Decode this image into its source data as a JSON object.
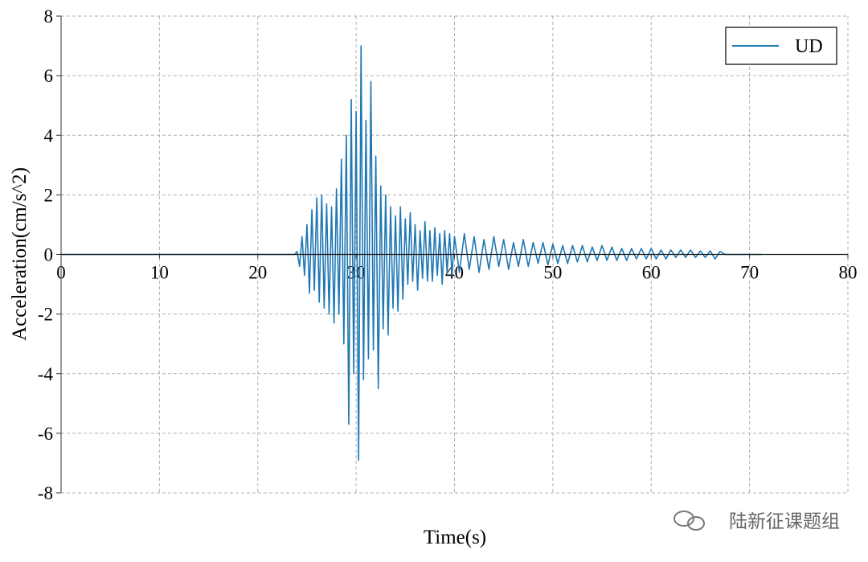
{
  "chart_data": {
    "type": "line",
    "xlabel": "Time(s)",
    "ylabel": "Acceleration(cm/s^2)",
    "watermark": "陆新征课题组",
    "x": [
      0,
      23.75,
      24,
      24.25,
      24.5,
      24.75,
      25,
      25.25,
      25.5,
      25.75,
      26,
      26.25,
      26.5,
      26.75,
      27,
      27.25,
      27.5,
      27.75,
      28,
      28.25,
      28.5,
      28.75,
      29,
      29.25,
      29.5,
      29.75,
      30,
      30.25,
      30.5,
      30.75,
      31,
      31.25,
      31.5,
      31.75,
      32,
      32.25,
      32.5,
      32.75,
      33,
      33.25,
      33.5,
      33.75,
      34,
      34.25,
      34.5,
      34.75,
      35,
      35.25,
      35.5,
      35.75,
      36,
      36.25,
      36.5,
      36.75,
      37,
      37.25,
      37.5,
      37.75,
      38,
      38.25,
      38.5,
      38.75,
      39,
      39.25,
      39.5,
      39.75,
      40,
      40.5,
      41,
      41.5,
      42,
      42.5,
      43,
      43.5,
      44,
      44.5,
      45,
      45.5,
      46,
      46.5,
      47,
      47.5,
      48,
      48.5,
      49,
      49.5,
      50,
      50.5,
      51,
      51.5,
      52,
      52.5,
      53,
      53.5,
      54,
      54.5,
      55,
      55.5,
      56,
      56.5,
      57,
      57.5,
      58,
      58.5,
      59,
      59.5,
      60,
      60.5,
      61,
      61.5,
      62,
      62.5,
      63,
      63.5,
      64,
      64.5,
      65,
      65.5,
      66,
      66.5,
      67,
      67.5,
      71.2
    ],
    "series": [
      {
        "name": "UD",
        "color": "#1f77b4",
        "values": [
          0,
          0,
          0.1,
          -0.4,
          0.6,
          -0.7,
          1.0,
          -1.3,
          1.5,
          -1.2,
          1.9,
          -1.6,
          2.0,
          -1.8,
          1.7,
          -2.0,
          1.6,
          -2.3,
          2.2,
          -2.0,
          3.2,
          -3.0,
          4.0,
          -5.7,
          5.2,
          -4.0,
          4.8,
          -6.9,
          7.0,
          -4.2,
          4.5,
          -3.5,
          5.8,
          -3.2,
          3.3,
          -4.5,
          2.3,
          -2.5,
          2.0,
          -2.7,
          1.6,
          -1.8,
          1.3,
          -1.9,
          1.6,
          -1.5,
          1.2,
          -1.0,
          1.4,
          -0.9,
          1.0,
          -1.2,
          0.8,
          -0.8,
          1.1,
          -0.9,
          0.8,
          -0.9,
          0.9,
          -0.7,
          0.7,
          -1.0,
          0.8,
          -0.6,
          0.7,
          -0.7,
          0.6,
          -0.6,
          0.7,
          -0.5,
          0.6,
          -0.6,
          0.5,
          -0.5,
          0.6,
          -0.4,
          0.5,
          -0.5,
          0.4,
          -0.4,
          0.5,
          -0.4,
          0.4,
          -0.3,
          0.4,
          -0.35,
          0.35,
          -0.3,
          0.3,
          -0.3,
          0.3,
          -0.25,
          0.3,
          -0.25,
          0.25,
          -0.2,
          0.3,
          -0.2,
          0.25,
          -0.2,
          0.2,
          -0.2,
          0.2,
          -0.15,
          0.2,
          -0.15,
          0.2,
          -0.15,
          0.15,
          -0.15,
          0.15,
          -0.1,
          0.15,
          -0.1,
          0.15,
          -0.1,
          0.12,
          -0.1,
          0.12,
          -0.15,
          0.1,
          0,
          0
        ]
      }
    ],
    "xlim": [
      0,
      80
    ],
    "xticks": [
      0,
      10,
      20,
      30,
      40,
      50,
      60,
      70,
      80
    ],
    "ylim": [
      -8,
      8
    ],
    "yticks": [
      -8,
      -6,
      -4,
      -2,
      0,
      2,
      4,
      6,
      8
    ],
    "grid": true,
    "legend": "upper right"
  }
}
